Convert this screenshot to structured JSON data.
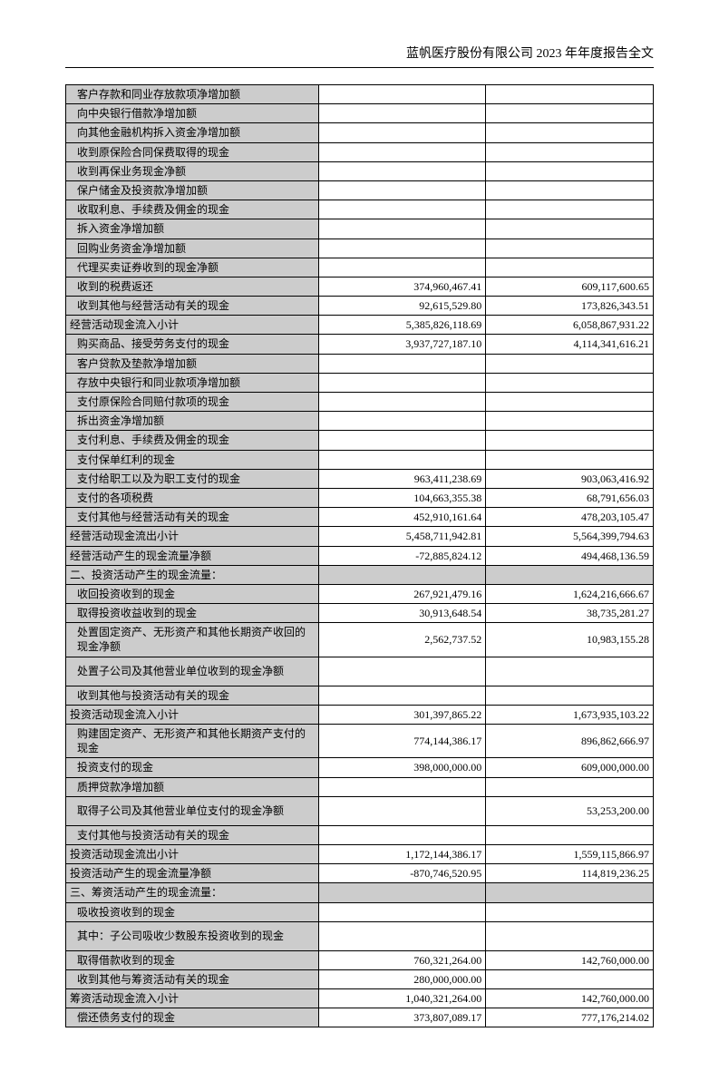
{
  "header": "蓝帆医疗股份有限公司 2023 年年度报告全文",
  "colors": {
    "shaded": "#cccccc",
    "border": "#000000",
    "text": "#000000",
    "bg": "#ffffff"
  },
  "typography": {
    "body_fontsize_pt": 9,
    "header_fontsize_pt": 10.5,
    "font_family": "SimSun"
  },
  "table": {
    "col_widths_pct": [
      43,
      28.5,
      28.5
    ],
    "rows": [
      {
        "label": "客户存款和同业存放款项净增加额",
        "c1": "",
        "c2": "",
        "shaded": true
      },
      {
        "label": "向中央银行借款净增加额",
        "c1": "",
        "c2": "",
        "shaded": true
      },
      {
        "label": "向其他金融机构拆入资金净增加额",
        "c1": "",
        "c2": "",
        "shaded": true
      },
      {
        "label": "收到原保险合同保费取得的现金",
        "c1": "",
        "c2": "",
        "shaded": true
      },
      {
        "label": "收到再保业务现金净额",
        "c1": "",
        "c2": "",
        "shaded": true
      },
      {
        "label": "保户储金及投资款净增加额",
        "c1": "",
        "c2": "",
        "shaded": true
      },
      {
        "label": "收取利息、手续费及佣金的现金",
        "c1": "",
        "c2": "",
        "shaded": true
      },
      {
        "label": "拆入资金净增加额",
        "c1": "",
        "c2": "",
        "shaded": true
      },
      {
        "label": "回购业务资金净增加额",
        "c1": "",
        "c2": "",
        "shaded": true
      },
      {
        "label": "代理买卖证券收到的现金净额",
        "c1": "",
        "c2": "",
        "shaded": true
      },
      {
        "label": "收到的税费返还",
        "c1": "374,960,467.41",
        "c2": "609,117,600.65",
        "shaded": true
      },
      {
        "label": "收到其他与经营活动有关的现金",
        "c1": "92,615,529.80",
        "c2": "173,826,343.51",
        "shaded": true
      },
      {
        "label": "经营活动现金流入小计",
        "c1": "5,385,826,118.69",
        "c2": "6,058,867,931.22",
        "shaded": true,
        "indent": false
      },
      {
        "label": "购买商品、接受劳务支付的现金",
        "c1": "3,937,727,187.10",
        "c2": "4,114,341,616.21",
        "shaded": true
      },
      {
        "label": "客户贷款及垫款净增加额",
        "c1": "",
        "c2": "",
        "shaded": true
      },
      {
        "label": "存放中央银行和同业款项净增加额",
        "c1": "",
        "c2": "",
        "shaded": true
      },
      {
        "label": "支付原保险合同赔付款项的现金",
        "c1": "",
        "c2": "",
        "shaded": true
      },
      {
        "label": "拆出资金净增加额",
        "c1": "",
        "c2": "",
        "shaded": true
      },
      {
        "label": "支付利息、手续费及佣金的现金",
        "c1": "",
        "c2": "",
        "shaded": true
      },
      {
        "label": "支付保单红利的现金",
        "c1": "",
        "c2": "",
        "shaded": true
      },
      {
        "label": "支付给职工以及为职工支付的现金",
        "c1": "963,411,238.69",
        "c2": "903,063,416.92",
        "shaded": true
      },
      {
        "label": "支付的各项税费",
        "c1": "104,663,355.38",
        "c2": "68,791,656.03",
        "shaded": true
      },
      {
        "label": "支付其他与经营活动有关的现金",
        "c1": "452,910,161.64",
        "c2": "478,203,105.47",
        "shaded": true
      },
      {
        "label": "经营活动现金流出小计",
        "c1": "5,458,711,942.81",
        "c2": "5,564,399,794.63",
        "shaded": true,
        "indent": false
      },
      {
        "label": "经营活动产生的现金流量净额",
        "c1": "-72,885,824.12",
        "c2": "494,468,136.59",
        "shaded": true,
        "indent": false
      },
      {
        "label": "二、投资活动产生的现金流量：",
        "c1": "",
        "c2": "",
        "section": true,
        "indent": false
      },
      {
        "label": "收回投资收到的现金",
        "c1": "267,921,479.16",
        "c2": "1,624,216,666.67",
        "shaded": true
      },
      {
        "label": "取得投资收益收到的现金",
        "c1": "30,913,648.54",
        "c2": "38,735,281.27",
        "shaded": true
      },
      {
        "label": "处置固定资产、无形资产和其他长期资产收回的现金净额",
        "c1": "2,562,737.52",
        "c2": "10,983,155.28",
        "shaded": true,
        "tall": true
      },
      {
        "label": "处置子公司及其他营业单位收到的现金净额",
        "c1": "",
        "c2": "",
        "shaded": true,
        "tall": true
      },
      {
        "label": "收到其他与投资活动有关的现金",
        "c1": "",
        "c2": "",
        "shaded": true
      },
      {
        "label": "投资活动现金流入小计",
        "c1": "301,397,865.22",
        "c2": "1,673,935,103.22",
        "shaded": true,
        "indent": false
      },
      {
        "label": "购建固定资产、无形资产和其他长期资产支付的现金",
        "c1": "774,144,386.17",
        "c2": "896,862,666.97",
        "shaded": true,
        "tall": true
      },
      {
        "label": "投资支付的现金",
        "c1": "398,000,000.00",
        "c2": "609,000,000.00",
        "shaded": true
      },
      {
        "label": "质押贷款净增加额",
        "c1": "",
        "c2": "",
        "shaded": true
      },
      {
        "label": "取得子公司及其他营业单位支付的现金净额",
        "c1": "",
        "c2": "53,253,200.00",
        "shaded": true,
        "tall": true
      },
      {
        "label": "支付其他与投资活动有关的现金",
        "c1": "",
        "c2": "",
        "shaded": true
      },
      {
        "label": "投资活动现金流出小计",
        "c1": "1,172,144,386.17",
        "c2": "1,559,115,866.97",
        "shaded": true,
        "indent": false
      },
      {
        "label": "投资活动产生的现金流量净额",
        "c1": "-870,746,520.95",
        "c2": "114,819,236.25",
        "shaded": true,
        "indent": false
      },
      {
        "label": "三、筹资活动产生的现金流量：",
        "c1": "",
        "c2": "",
        "section": true,
        "indent": false
      },
      {
        "label": "吸收投资收到的现金",
        "c1": "",
        "c2": "",
        "shaded": true
      },
      {
        "label": "其中：子公司吸收少数股东投资收到的现金",
        "c1": "",
        "c2": "",
        "shaded": true,
        "tall": true
      },
      {
        "label": "取得借款收到的现金",
        "c1": "760,321,264.00",
        "c2": "142,760,000.00",
        "shaded": true
      },
      {
        "label": "收到其他与筹资活动有关的现金",
        "c1": "280,000,000.00",
        "c2": "",
        "shaded": true
      },
      {
        "label": "筹资活动现金流入小计",
        "c1": "1,040,321,264.00",
        "c2": "142,760,000.00",
        "shaded": true,
        "indent": false
      },
      {
        "label": "偿还债务支付的现金",
        "c1": "373,807,089.17",
        "c2": "777,176,214.02",
        "shaded": true
      }
    ]
  }
}
